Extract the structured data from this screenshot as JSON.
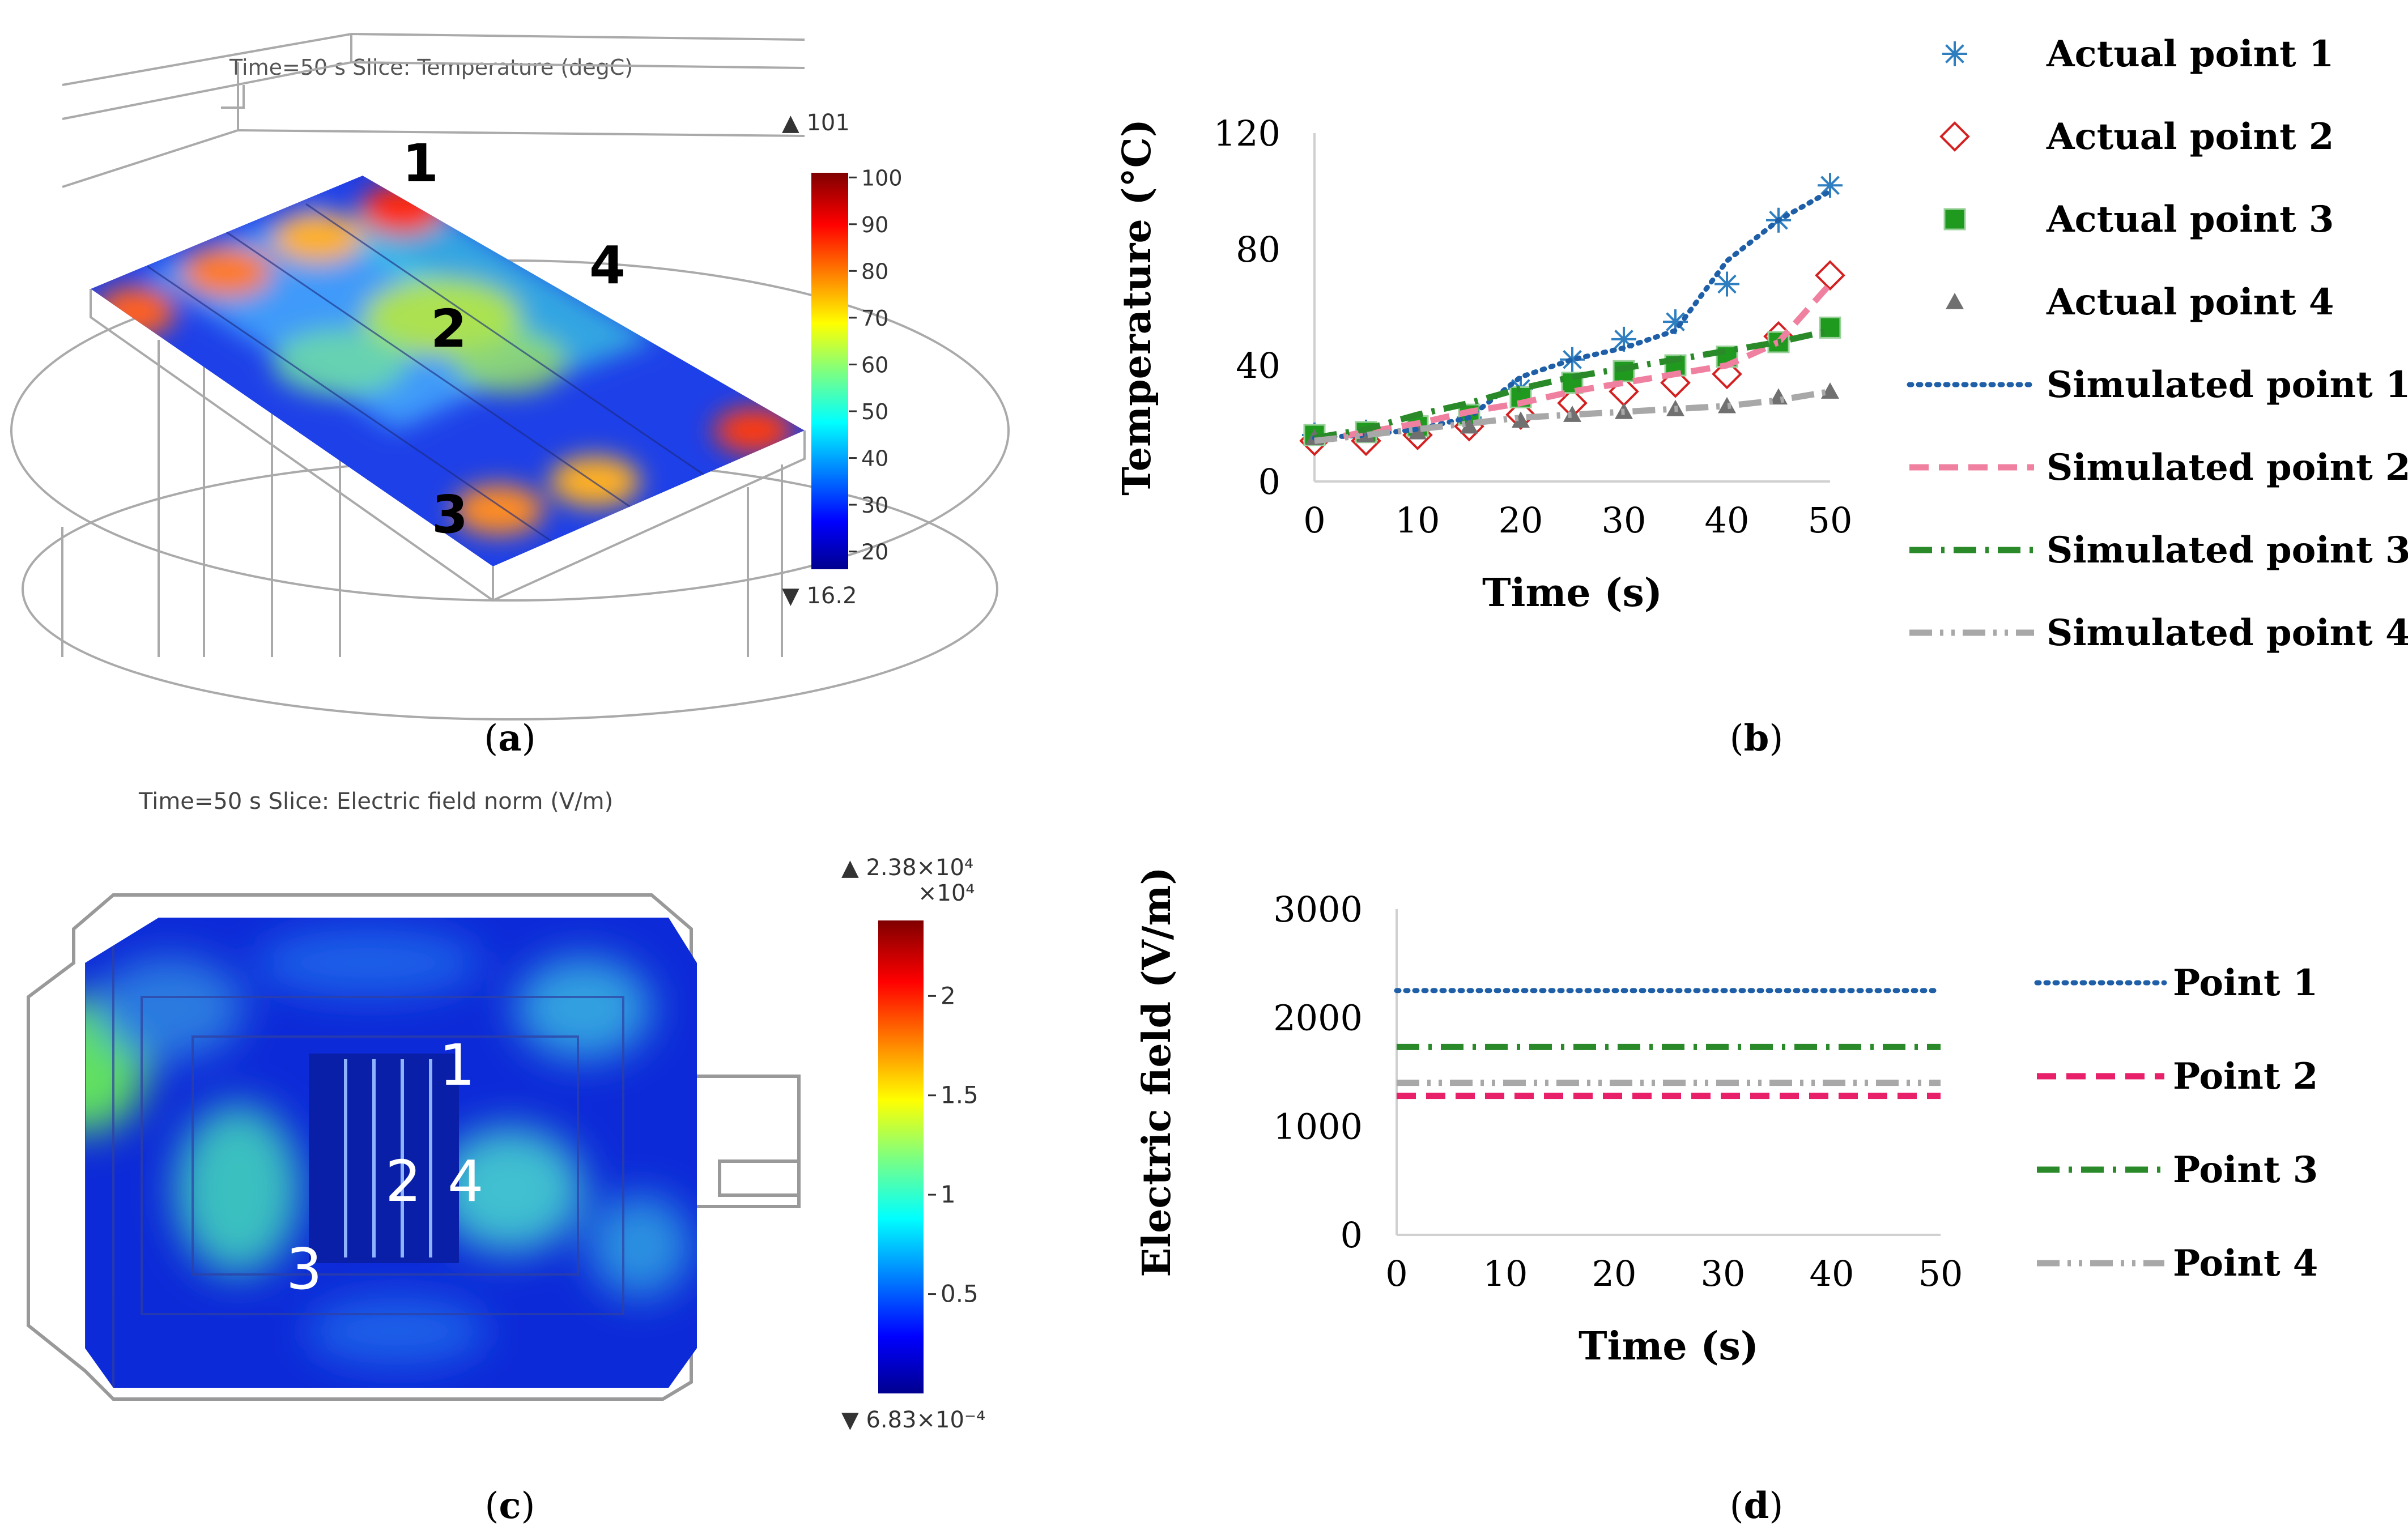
{
  "panels": {
    "a": {
      "label": "a",
      "header": "Time=50 s   Slice: Temperature (degC)",
      "colorbar": {
        "max_marker": "▲ 101",
        "min_marker": "▼ 16.2",
        "ticks": [
          "100",
          "90",
          "80",
          "70",
          "60",
          "50",
          "40",
          "30",
          "20"
        ],
        "tick_values": [
          100,
          90,
          80,
          70,
          60,
          50,
          40,
          30,
          20
        ],
        "range": [
          16.2,
          101
        ]
      },
      "point_labels": [
        "1",
        "2",
        "3",
        "4"
      ]
    },
    "c": {
      "label": "c",
      "header": "Time=50 s   Slice: Electric field norm (V/m)",
      "colorbar": {
        "max_marker": "▲ 2.38×10⁴",
        "scale_note": "×10⁴",
        "min_marker": "▼ 6.83×10⁻⁴",
        "ticks": [
          "2",
          "1.5",
          "1",
          "0.5"
        ],
        "tick_values": [
          2,
          1.5,
          1,
          0.5
        ],
        "range": [
          0,
          2.38
        ]
      },
      "point_labels": [
        "1",
        "2",
        "3",
        "4"
      ]
    },
    "b": {
      "label": "b"
    },
    "d": {
      "label": "d"
    }
  },
  "colors": {
    "point1": "#1f5fa8",
    "actual1": "#2f7fc0",
    "point2": "#f080a0",
    "actual2": "#d42020",
    "point3": "#2a8a2a",
    "point4": "#a8a8a8",
    "actual4": "#707070",
    "efield_point2": "#e8206a",
    "axis": "#d0d0d0"
  },
  "chart_data": [
    {
      "id": "b",
      "type": "line",
      "xlabel": "Time (s)",
      "ylabel": "Temperature (°C)",
      "xlim": [
        0,
        50
      ],
      "ylim": [
        0,
        120
      ],
      "xticks": [
        0,
        10,
        20,
        30,
        40,
        50
      ],
      "yticks": [
        0,
        40,
        80,
        120
      ],
      "grid": false,
      "legend_position": "right",
      "series": [
        {
          "name": "Actual point 1",
          "kind": "marker",
          "marker": "asterisk",
          "x": [
            0,
            5,
            10,
            15,
            20,
            25,
            30,
            35,
            40,
            45,
            50
          ],
          "y": [
            16,
            17,
            18,
            22,
            32,
            42,
            49,
            55,
            68,
            90,
            102
          ]
        },
        {
          "name": "Actual point 2",
          "kind": "marker",
          "marker": "diamond",
          "x": [
            0,
            5,
            10,
            15,
            20,
            25,
            30,
            35,
            40,
            45,
            50
          ],
          "y": [
            14,
            14,
            16,
            19,
            23,
            27,
            31,
            34,
            37,
            50,
            71
          ]
        },
        {
          "name": "Actual point 3",
          "kind": "marker",
          "marker": "square",
          "x": [
            0,
            5,
            10,
            15,
            20,
            25,
            30,
            35,
            40,
            45,
            50
          ],
          "y": [
            16,
            17,
            19,
            23,
            29,
            34,
            38,
            40,
            43,
            48,
            53
          ]
        },
        {
          "name": "Actual point 4",
          "kind": "marker",
          "marker": "triangle",
          "x": [
            0,
            5,
            10,
            15,
            20,
            25,
            30,
            35,
            40,
            45,
            50
          ],
          "y": [
            15,
            16,
            17,
            19,
            21,
            23,
            24,
            25,
            26,
            29,
            31
          ]
        },
        {
          "name": "Simulated point 1",
          "kind": "line",
          "dash": "dotted",
          "x": [
            0,
            5,
            10,
            15,
            20,
            25,
            30,
            35,
            40,
            45,
            50
          ],
          "y": [
            15,
            16,
            18,
            22,
            36,
            42,
            46,
            52,
            76,
            90,
            100
          ]
        },
        {
          "name": "Simulated point 2",
          "kind": "line",
          "dash": "dashed",
          "x": [
            0,
            5,
            10,
            15,
            20,
            25,
            30,
            35,
            40,
            45,
            50
          ],
          "y": [
            14,
            17,
            20,
            24,
            27,
            31,
            34,
            37,
            40,
            48,
            68
          ]
        },
        {
          "name": "Simulated point 3",
          "kind": "line",
          "dash": "dashdot",
          "x": [
            0,
            5,
            10,
            15,
            20,
            25,
            30,
            35,
            40,
            45,
            50
          ],
          "y": [
            15,
            18,
            23,
            27,
            32,
            36,
            39,
            42,
            45,
            48,
            52
          ]
        },
        {
          "name": "Simulated point 4",
          "kind": "line",
          "dash": "dashdotdot",
          "x": [
            0,
            5,
            10,
            15,
            20,
            25,
            30,
            35,
            40,
            45,
            50
          ],
          "y": [
            14,
            16,
            18,
            20,
            22,
            23,
            24,
            25,
            26,
            28,
            31
          ]
        }
      ]
    },
    {
      "id": "d",
      "type": "line",
      "xlabel": "Time (s)",
      "ylabel": "Electric field (V/m)",
      "xlim": [
        0,
        50
      ],
      "ylim": [
        0,
        3000
      ],
      "xticks": [
        0,
        10,
        20,
        30,
        40,
        50
      ],
      "yticks": [
        0,
        1000,
        2000,
        3000
      ],
      "grid": false,
      "legend_position": "right",
      "series": [
        {
          "name": "Point 1",
          "dash": "dotted",
          "x": [
            0,
            50
          ],
          "y": [
            2250,
            2250
          ]
        },
        {
          "name": "Point 2",
          "dash": "dashed",
          "x": [
            0,
            50
          ],
          "y": [
            1280,
            1280
          ]
        },
        {
          "name": "Point 3",
          "dash": "dashdot",
          "x": [
            0,
            50
          ],
          "y": [
            1730,
            1730
          ]
        },
        {
          "name": "Point 4",
          "dash": "dashdotdot",
          "x": [
            0,
            50
          ],
          "y": [
            1400,
            1400
          ]
        }
      ]
    }
  ]
}
